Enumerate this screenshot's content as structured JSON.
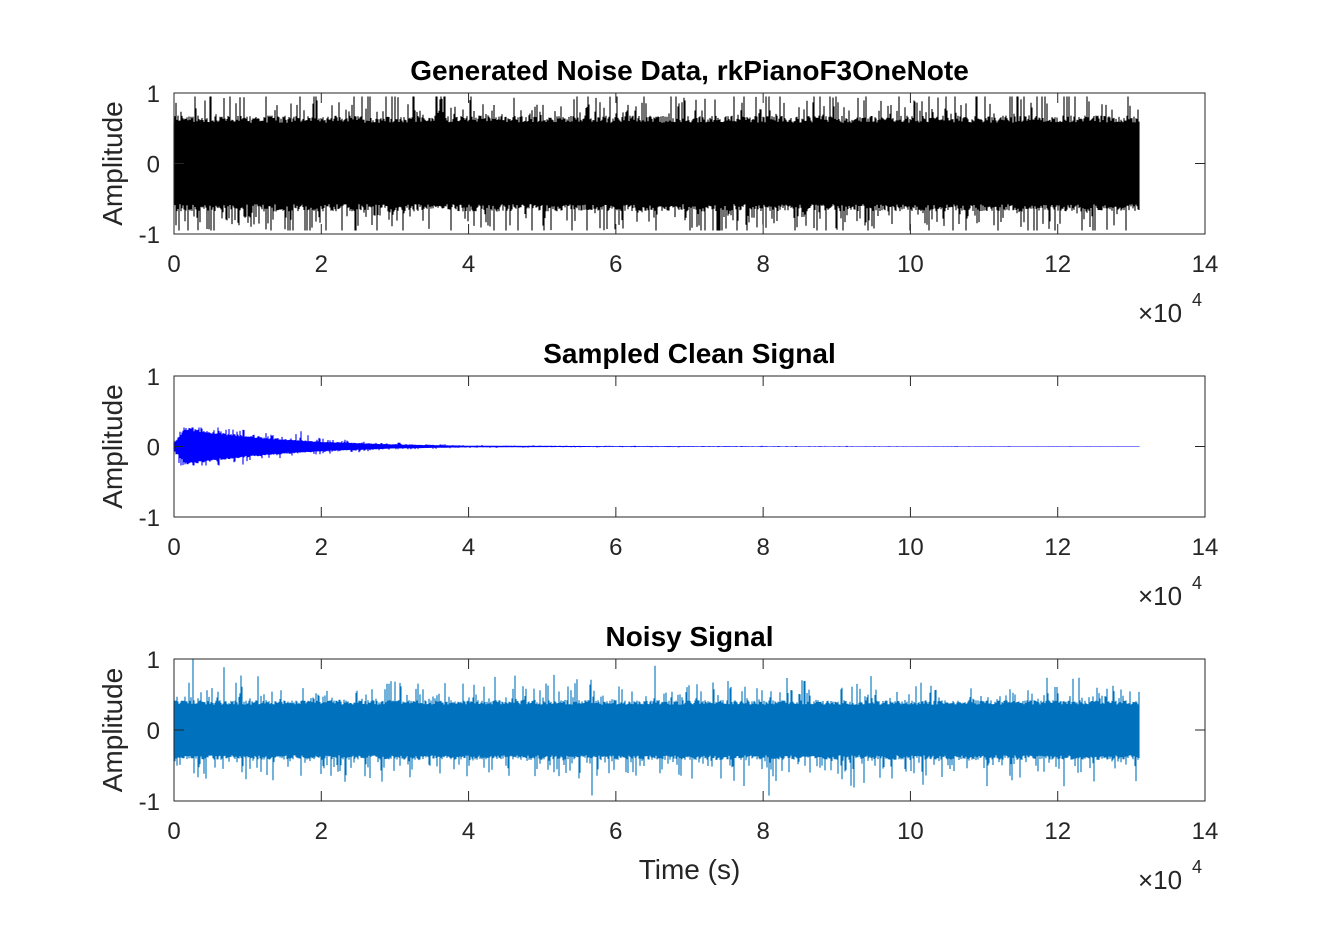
{
  "chart_data": [
    {
      "type": "line",
      "title": "Generated Noise Data, rkPianoF3OneNote",
      "xlabel": "",
      "ylabel": "Amplitude",
      "xlim": [
        0,
        140000
      ],
      "ylim": [
        -1,
        1
      ],
      "xticks": [
        0,
        20000,
        40000,
        60000,
        80000,
        100000,
        120000,
        140000
      ],
      "xtick_labels": [
        "0",
        "2",
        "4",
        "6",
        "8",
        "10",
        "12",
        "14"
      ],
      "yticks": [
        -1,
        0,
        1
      ],
      "ytick_labels": [
        "-1",
        "0",
        "1"
      ],
      "x_multiplier": "×10",
      "x_multiplier_exp": "4",
      "color": "#000000",
      "series": [
        {
          "x_start": 0,
          "x_end": 131000,
          "envelope": [
            [
              0,
              0.68
            ],
            [
              130000,
              0.68
            ]
          ],
          "peak": 0.95
        }
      ]
    },
    {
      "type": "line",
      "title": "Sampled Clean Signal",
      "xlabel": "",
      "ylabel": "Amplitude",
      "xlim": [
        0,
        140000
      ],
      "ylim": [
        -1,
        1
      ],
      "xticks": [
        0,
        20000,
        40000,
        60000,
        80000,
        100000,
        120000,
        140000
      ],
      "xtick_labels": [
        "0",
        "2",
        "4",
        "6",
        "8",
        "10",
        "12",
        "14"
      ],
      "yticks": [
        -1,
        0,
        1
      ],
      "ytick_labels": [
        "-1",
        "0",
        "1"
      ],
      "x_multiplier": "×10",
      "x_multiplier_exp": "4",
      "color": "#0000ff",
      "series": [
        {
          "x_start": 0,
          "x_end": 131000,
          "envelope": [
            [
              0,
              0.05
            ],
            [
              1500,
              0.27
            ],
            [
              6000,
              0.2
            ],
            [
              12000,
              0.13
            ],
            [
              20000,
              0.07
            ],
            [
              30000,
              0.03
            ],
            [
              40000,
              0.012
            ],
            [
              60000,
              0.006
            ],
            [
              131000,
              0.003
            ]
          ],
          "peak": 0.27
        }
      ]
    },
    {
      "type": "line",
      "title": "Noisy Signal",
      "xlabel": "Time (s)",
      "ylabel": "Amplitude",
      "xlim": [
        0,
        140000
      ],
      "ylim": [
        -1,
        1
      ],
      "xticks": [
        0,
        20000,
        40000,
        60000,
        80000,
        100000,
        120000,
        140000
      ],
      "xtick_labels": [
        "0",
        "2",
        "4",
        "6",
        "8",
        "10",
        "12",
        "14"
      ],
      "yticks": [
        -1,
        0,
        1
      ],
      "ytick_labels": [
        "-1",
        "0",
        "1"
      ],
      "x_multiplier": "×10",
      "x_multiplier_exp": "4",
      "color": "#0072bd",
      "series": [
        {
          "x_start": 0,
          "x_end": 131000,
          "envelope": [
            [
              0,
              0.42
            ],
            [
              131000,
              0.42
            ]
          ],
          "peak": 1.0
        }
      ]
    }
  ]
}
